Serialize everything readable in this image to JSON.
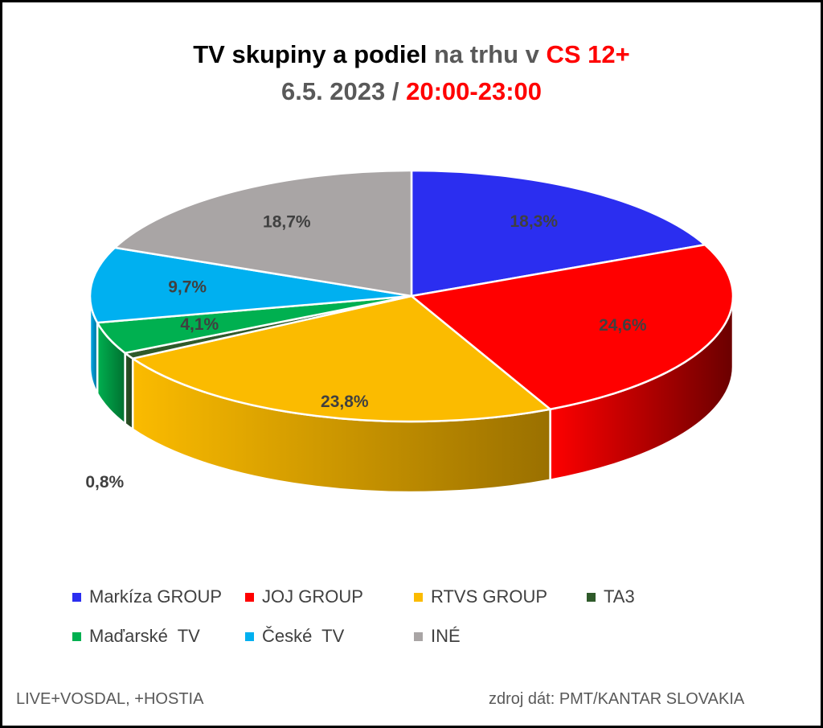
{
  "chart_data": {
    "type": "pie",
    "title": {
      "part1": "TV skupiny a podiel",
      "part2": " na trhu v ",
      "part3": "CS 12+"
    },
    "subtitle": {
      "part1": "6.5. 2023 / ",
      "part2": "20:00-23:00"
    },
    "slices": [
      {
        "name": "Markíza GROUP",
        "value": 18.3,
        "label": "18,3%",
        "color": "#2b2ef0",
        "side": "#1a1c99"
      },
      {
        "name": "JOJ GROUP",
        "value": 24.6,
        "label": "24,6%",
        "color": "#ff0000",
        "side": "#6b0000"
      },
      {
        "name": "RTVS GROUP",
        "value": 23.8,
        "label": "23,8%",
        "color": "#fbbb00",
        "side": "#9a7000"
      },
      {
        "name": "TA3",
        "value": 0.8,
        "label": "0,8%",
        "color": "#2f5a2a",
        "side": "#1e3a1b"
      },
      {
        "name": "Maďarské  TV",
        "value": 4.1,
        "label": "4,1%",
        "color": "#00b050",
        "side": "#00702f"
      },
      {
        "name": "České  TV",
        "value": 9.7,
        "label": "9,7%",
        "color": "#00b0f0",
        "side": "#006f99"
      },
      {
        "name": "INÉ",
        "value": 18.7,
        "label": "18,7%",
        "color": "#a9a5a5",
        "side": "#6e6b6b"
      }
    ],
    "legend_position": "bottom"
  },
  "footer": {
    "left": "LIVE+VOSDAL, +HOSTIA",
    "right": "zdroj dát: PMT/KANTAR SLOVAKIA"
  }
}
